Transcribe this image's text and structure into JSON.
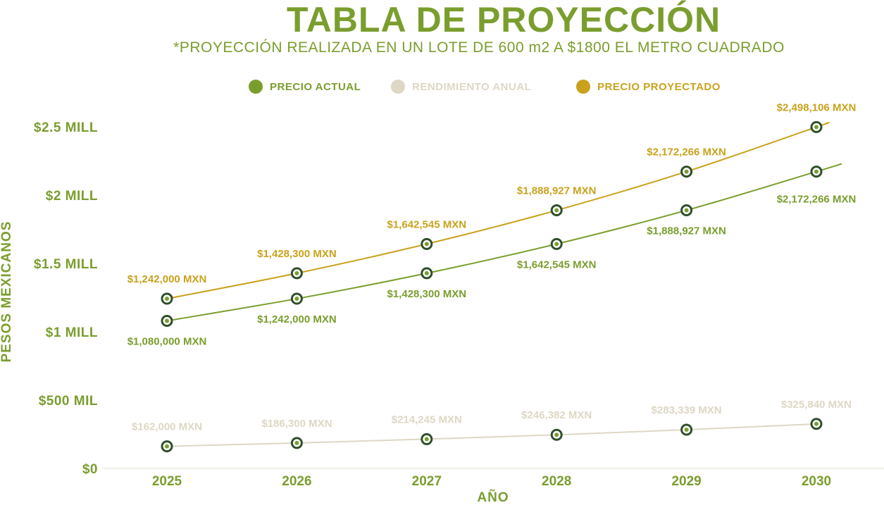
{
  "chart_data": {
    "type": "line",
    "title": "TABLA DE PROYECCIÓN",
    "subtitle": "*PROYECCIÓN REALIZADA EN UN LOTE DE 600 m2 A $1800 EL METRO CUADRADO",
    "xlabel": "AÑO",
    "ylabel": "PESOS MEXICANOS",
    "categories": [
      "2025",
      "2026",
      "2027",
      "2028",
      "2029",
      "2030"
    ],
    "ylim": [
      0,
      2500000
    ],
    "yticks": [
      {
        "value": 0,
        "label": "$0"
      },
      {
        "value": 500000,
        "label": "$500 MIL"
      },
      {
        "value": 1000000,
        "label": "$1 MILL"
      },
      {
        "value": 1500000,
        "label": "$1.5 MILL"
      },
      {
        "value": 2000000,
        "label": "$2 MILL"
      },
      {
        "value": 2500000,
        "label": "$2.5 MILL"
      }
    ],
    "legend_position": "top",
    "series": [
      {
        "name": "PRECIO ACTUAL",
        "color": "#7a9e2e",
        "values": [
          1080000,
          1242000,
          1428300,
          1642545,
          1888927,
          2172266
        ],
        "labels": [
          "$1,080,000 MXN",
          "$1,242,000 MXN",
          "$1,428,300 MXN",
          "$1,642,545 MXN",
          "$1,888,927 MXN",
          "$2,172,266 MXN"
        ],
        "label_placement": "below"
      },
      {
        "name": "RENDIMIENTO ANUAL",
        "color": "#ddd7c4",
        "values": [
          162000,
          186300,
          214245,
          246382,
          283339,
          325840
        ],
        "labels": [
          "$162,000 MXN",
          "$186,300 MXN",
          "$214,245 MXN",
          "$246,382 MXN",
          "$283,339 MXN",
          "$325,840 MXN"
        ],
        "label_placement": "above"
      },
      {
        "name": "PRECIO PROYECTADO",
        "color": "#c9a21c",
        "values": [
          1242000,
          1428300,
          1642545,
          1888927,
          2172266,
          2498106
        ],
        "labels": [
          "$1,242,000 MXN",
          "$1,428,300 MXN",
          "$1,642,545 MXN",
          "$1,888,927 MXN",
          "$2,172,266 MXN",
          "$2,498,106 MXN"
        ],
        "label_placement": "above"
      }
    ]
  }
}
